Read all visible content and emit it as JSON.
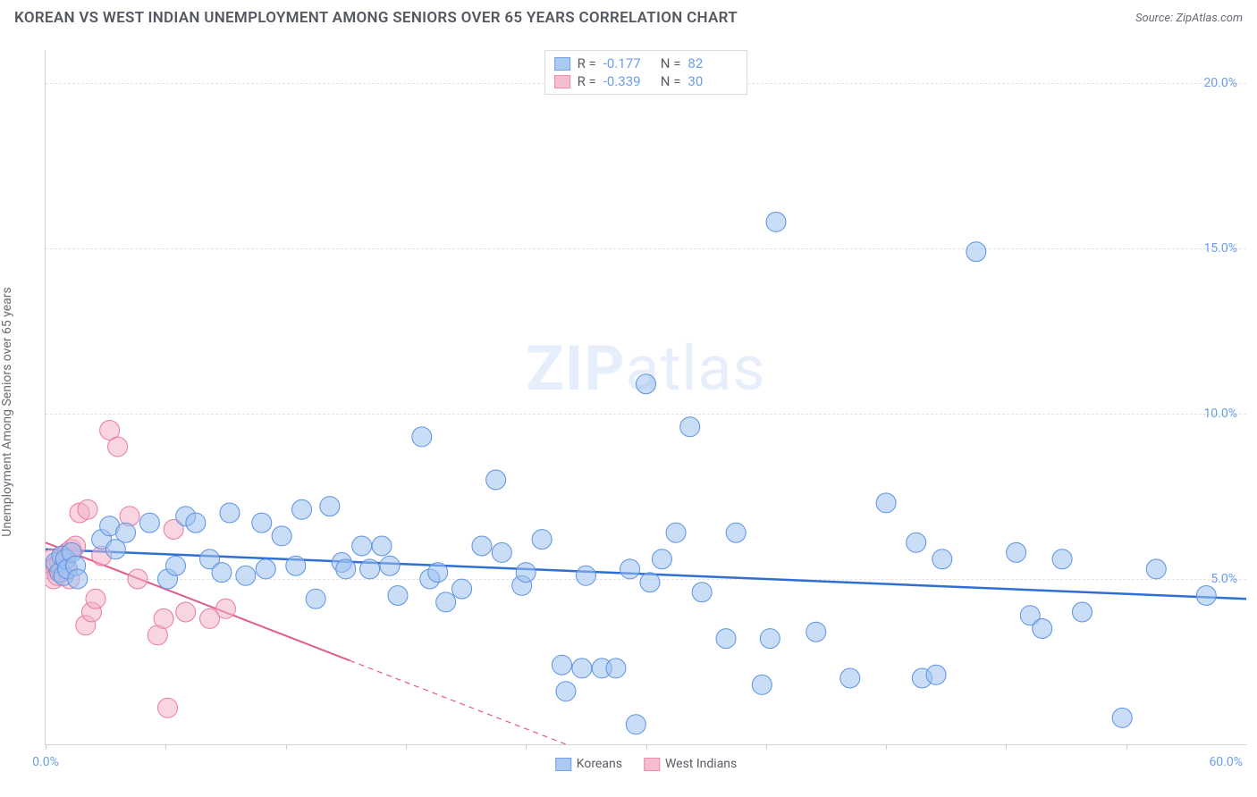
{
  "title": "KOREAN VS WEST INDIAN UNEMPLOYMENT AMONG SENIORS OVER 65 YEARS CORRELATION CHART",
  "source_label": "Source:",
  "source_value": "ZipAtlas.com",
  "ylabel": "Unemployment Among Seniors over 65 years",
  "watermark_a": "ZIP",
  "watermark_b": "atlas",
  "chart": {
    "type": "scatter",
    "xlim": [
      0,
      60
    ],
    "ylim": [
      0,
      21
    ],
    "xtick_positions": [
      0,
      6,
      12,
      18,
      24,
      30,
      36,
      42,
      48,
      54
    ],
    "xtick_labels": {
      "first": "0.0%",
      "last": "60.0%"
    },
    "yticks": [
      5,
      10,
      15,
      20
    ],
    "ytick_labels": [
      "5.0%",
      "10.0%",
      "15.0%",
      "20.0%"
    ],
    "background_color": "#ffffff",
    "grid_color": "#e3e5e9",
    "axis_color": "#d0d3d8",
    "tick_label_color": "#6a9eea",
    "label_color": "#676b73",
    "series": [
      {
        "name": "Koreans",
        "color_fill": "#9dc1f0",
        "color_stroke": "#5d92e0",
        "fill_opacity": 0.55,
        "marker_radius": 11,
        "R": "-0.177",
        "N": "82",
        "trend": {
          "x1": 0,
          "y1": 5.9,
          "x2": 60,
          "y2": 4.4,
          "solid_until_x": 60,
          "color": "#2f6fd4",
          "width": 2.5
        },
        "points": [
          [
            0.5,
            5.5
          ],
          [
            0.7,
            5.2
          ],
          [
            0.8,
            5.7
          ],
          [
            0.9,
            5.1
          ],
          [
            1.0,
            5.6
          ],
          [
            1.1,
            5.3
          ],
          [
            1.3,
            5.8
          ],
          [
            1.5,
            5.4
          ],
          [
            1.6,
            5.0
          ],
          [
            2.8,
            6.2
          ],
          [
            3.2,
            6.6
          ],
          [
            3.5,
            5.9
          ],
          [
            4.0,
            6.4
          ],
          [
            5.2,
            6.7
          ],
          [
            6.1,
            5.0
          ],
          [
            6.5,
            5.4
          ],
          [
            7.0,
            6.9
          ],
          [
            7.5,
            6.7
          ],
          [
            8.2,
            5.6
          ],
          [
            8.8,
            5.2
          ],
          [
            9.2,
            7.0
          ],
          [
            10.0,
            5.1
          ],
          [
            10.8,
            6.7
          ],
          [
            11.0,
            5.3
          ],
          [
            11.8,
            6.3
          ],
          [
            12.5,
            5.4
          ],
          [
            12.8,
            7.1
          ],
          [
            13.5,
            4.4
          ],
          [
            14.2,
            7.2
          ],
          [
            14.8,
            5.5
          ],
          [
            15.0,
            5.3
          ],
          [
            15.8,
            6.0
          ],
          [
            16.2,
            5.3
          ],
          [
            16.8,
            6.0
          ],
          [
            17.2,
            5.4
          ],
          [
            17.6,
            4.5
          ],
          [
            18.8,
            9.3
          ],
          [
            19.2,
            5.0
          ],
          [
            19.6,
            5.2
          ],
          [
            20.0,
            4.3
          ],
          [
            20.8,
            4.7
          ],
          [
            21.8,
            6.0
          ],
          [
            22.5,
            8.0
          ],
          [
            22.8,
            5.8
          ],
          [
            23.8,
            4.8
          ],
          [
            24.0,
            5.2
          ],
          [
            24.8,
            6.2
          ],
          [
            25.8,
            2.4
          ],
          [
            26.0,
            1.6
          ],
          [
            26.8,
            2.3
          ],
          [
            27.0,
            5.1
          ],
          [
            27.8,
            2.3
          ],
          [
            28.5,
            2.3
          ],
          [
            29.2,
            5.3
          ],
          [
            29.5,
            0.6
          ],
          [
            30.0,
            10.9
          ],
          [
            30.2,
            4.9
          ],
          [
            30.8,
            5.6
          ],
          [
            31.5,
            6.4
          ],
          [
            32.2,
            9.6
          ],
          [
            32.8,
            4.6
          ],
          [
            34.0,
            3.2
          ],
          [
            34.5,
            6.4
          ],
          [
            35.8,
            1.8
          ],
          [
            36.2,
            3.2
          ],
          [
            36.5,
            15.8
          ],
          [
            38.5,
            3.4
          ],
          [
            40.2,
            2.0
          ],
          [
            42.0,
            7.3
          ],
          [
            43.5,
            6.1
          ],
          [
            43.8,
            2.0
          ],
          [
            44.5,
            2.1
          ],
          [
            44.8,
            5.6
          ],
          [
            46.5,
            14.9
          ],
          [
            48.5,
            5.8
          ],
          [
            49.2,
            3.9
          ],
          [
            49.8,
            3.5
          ],
          [
            50.8,
            5.6
          ],
          [
            51.8,
            4.0
          ],
          [
            53.8,
            0.8
          ],
          [
            55.5,
            5.3
          ],
          [
            58.0,
            4.5
          ]
        ]
      },
      {
        "name": "West Indians",
        "color_fill": "#f3b3c6",
        "color_stroke": "#e87ba0",
        "fill_opacity": 0.55,
        "marker_radius": 11,
        "R": "-0.339",
        "N": "30",
        "trend": {
          "x1": 0,
          "y1": 6.1,
          "x2": 26,
          "y2": 0,
          "solid_until_x": 15.2,
          "color": "#e05a8a",
          "width": 2
        },
        "points": [
          [
            0.2,
            5.3
          ],
          [
            0.3,
            5.6
          ],
          [
            0.4,
            5.0
          ],
          [
            0.5,
            5.4
          ],
          [
            0.6,
            5.1
          ],
          [
            0.7,
            5.5
          ],
          [
            0.8,
            5.2
          ],
          [
            0.9,
            5.7
          ],
          [
            1.0,
            5.3
          ],
          [
            1.1,
            5.8
          ],
          [
            1.2,
            5.0
          ],
          [
            1.3,
            5.9
          ],
          [
            1.5,
            6.0
          ],
          [
            1.7,
            7.0
          ],
          [
            2.1,
            7.1
          ],
          [
            2.0,
            3.6
          ],
          [
            2.3,
            4.0
          ],
          [
            2.5,
            4.4
          ],
          [
            2.8,
            5.7
          ],
          [
            3.2,
            9.5
          ],
          [
            3.6,
            9.0
          ],
          [
            4.2,
            6.9
          ],
          [
            4.6,
            5.0
          ],
          [
            5.6,
            3.3
          ],
          [
            5.9,
            3.8
          ],
          [
            6.1,
            1.1
          ],
          [
            6.4,
            6.5
          ],
          [
            7.0,
            4.0
          ],
          [
            8.2,
            3.8
          ],
          [
            9.0,
            4.1
          ]
        ]
      }
    ],
    "legend_stats": {
      "R_label": "R =",
      "N_label": "N ="
    }
  }
}
